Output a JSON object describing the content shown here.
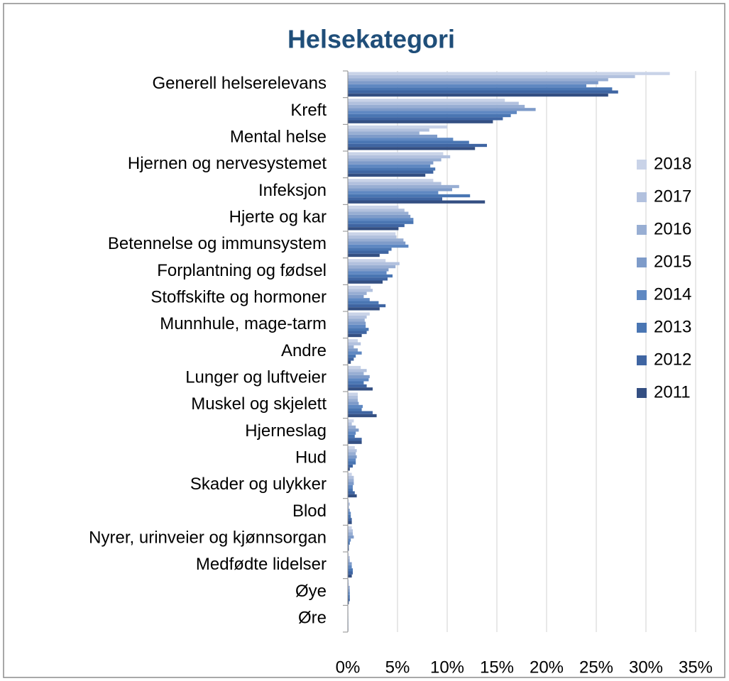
{
  "chart_data": {
    "type": "bar",
    "orientation": "horizontal",
    "title": "Helsekategori",
    "categories": [
      "Generell helserelevans",
      "Kreft",
      "Mental helse",
      "Hjernen og nervesystemet",
      "Infeksjon",
      "Hjerte og kar",
      "Betennelse og immunsystem",
      "Forplantning og fødsel",
      "Stoffskifte og hormoner",
      "Munnhule, mage-tarm",
      "Andre",
      "Lunger og luftveier",
      "Muskel og skjelett",
      "Hjerneslag",
      "Hud",
      "Skader og ulykker",
      "Blod",
      "Nyrer, urinveier og kjønnsorgan",
      "Medfødte lidelser",
      "Øye",
      "Øre"
    ],
    "series": [
      {
        "name": "2018",
        "color": "#c9d3e8",
        "values": [
          32.4,
          15.8,
          10.0,
          9.6,
          8.6,
          5.1,
          4.8,
          3.8,
          2.3,
          2.2,
          1.0,
          1.3,
          1.0,
          0.6,
          0.7,
          0.4,
          0.1,
          0.4,
          0.1,
          0.1,
          0.05
        ]
      },
      {
        "name": "2017",
        "color": "#b2c1de",
        "values": [
          28.9,
          17.2,
          8.2,
          10.3,
          9.4,
          5.7,
          4.9,
          5.2,
          2.5,
          1.9,
          1.3,
          1.9,
          1.0,
          0.4,
          0.9,
          0.6,
          0.2,
          0.5,
          0.2,
          0.1,
          0.05
        ]
      },
      {
        "name": "2016",
        "color": "#98aed3",
        "values": [
          26.2,
          17.8,
          7.2,
          9.4,
          11.2,
          6.1,
          5.6,
          4.8,
          1.9,
          1.7,
          0.6,
          1.6,
          1.0,
          0.8,
          0.8,
          0.6,
          0.1,
          0.5,
          0.2,
          0.2,
          0.05
        ]
      },
      {
        "name": "2015",
        "color": "#7e9bc9",
        "values": [
          25.2,
          18.9,
          9.0,
          8.6,
          10.5,
          6.3,
          5.8,
          4.1,
          1.6,
          1.8,
          1.0,
          2.2,
          1.1,
          1.1,
          0.9,
          0.6,
          0.2,
          0.6,
          0.4,
          0.2,
          0.05
        ]
      },
      {
        "name": "2014",
        "color": "#5f88c2",
        "values": [
          24.0,
          17.0,
          10.6,
          8.3,
          9.1,
          6.6,
          6.1,
          3.9,
          2.2,
          1.8,
          1.4,
          2.1,
          1.5,
          0.8,
          0.8,
          0.5,
          0.3,
          0.3,
          0.4,
          0.2,
          0.05
        ]
      },
      {
        "name": "2013",
        "color": "#4a76b3",
        "values": [
          26.6,
          16.4,
          12.2,
          8.8,
          12.3,
          6.6,
          4.4,
          4.5,
          3.1,
          2.1,
          0.8,
          1.6,
          1.4,
          0.7,
          0.8,
          0.5,
          0.3,
          0.2,
          0.5,
          0.2,
          0.05
        ]
      },
      {
        "name": "2012",
        "color": "#3f65a2",
        "values": [
          27.2,
          15.6,
          14.0,
          8.6,
          9.5,
          5.7,
          4.1,
          4.0,
          3.8,
          1.9,
          0.6,
          1.9,
          2.5,
          1.4,
          0.5,
          0.7,
          0.4,
          0.1,
          0.5,
          0.2,
          0.05
        ]
      },
      {
        "name": "2011",
        "color": "#344f82",
        "values": [
          26.2,
          14.6,
          12.8,
          7.8,
          13.8,
          5.1,
          3.2,
          3.5,
          3.2,
          1.4,
          0.3,
          2.5,
          2.9,
          1.4,
          0.2,
          0.9,
          0.4,
          0.1,
          0.4,
          0.1,
          0.05
        ]
      }
    ],
    "xlim": [
      0,
      35
    ],
    "xticks": [
      {
        "value": 0,
        "label": "0%"
      },
      {
        "value": 5,
        "label": "5%"
      },
      {
        "value": 10,
        "label": "10%"
      },
      {
        "value": 15,
        "label": "15%"
      },
      {
        "value": 20,
        "label": "20%"
      },
      {
        "value": 25,
        "label": "25%"
      },
      {
        "value": 30,
        "label": "30%"
      },
      {
        "value": 35,
        "label": "35%"
      }
    ],
    "grid": true,
    "legend": "right"
  }
}
